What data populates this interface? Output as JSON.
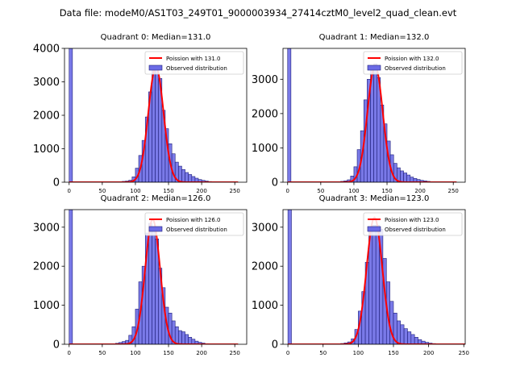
{
  "suptitle": "Data file: modeM0/AS1T03_249T01_9000003934_27414cztM0_level2_quad_clean.evt",
  "colors": {
    "bar_fill": "#6b6be6",
    "bar_edge": "#1f1f7a",
    "fit_line": "#ff0000"
  },
  "legend": {
    "observed_label": "Observed distribution",
    "placement": "top-right"
  },
  "chart_data": [
    {
      "type": "bar",
      "title": "Quadrant 0: Median=131.0",
      "fit_label": "Poission with 131.0",
      "median": 131.0,
      "xlim": [
        -7,
        268
      ],
      "ylim": [
        0,
        4000
      ],
      "xticks": [
        0,
        50,
        100,
        150,
        200,
        250
      ],
      "yticks": [
        0,
        1000,
        2000,
        3000,
        4000
      ],
      "bin_width": 5,
      "bins": [
        [
          0,
          4000
        ],
        [
          5,
          0
        ],
        [
          10,
          0
        ],
        [
          15,
          0
        ],
        [
          20,
          0
        ],
        [
          25,
          0
        ],
        [
          30,
          0
        ],
        [
          35,
          0
        ],
        [
          40,
          0
        ],
        [
          45,
          0
        ],
        [
          50,
          0
        ],
        [
          55,
          0
        ],
        [
          60,
          0
        ],
        [
          65,
          5
        ],
        [
          70,
          10
        ],
        [
          75,
          15
        ],
        [
          80,
          25
        ],
        [
          85,
          35
        ],
        [
          90,
          60
        ],
        [
          95,
          160
        ],
        [
          100,
          420
        ],
        [
          105,
          800
        ],
        [
          110,
          1250
        ],
        [
          115,
          1950
        ],
        [
          120,
          2700
        ],
        [
          125,
          3350
        ],
        [
          130,
          3450
        ],
        [
          135,
          3100
        ],
        [
          140,
          2150
        ],
        [
          145,
          1600
        ],
        [
          150,
          1150
        ],
        [
          155,
          850
        ],
        [
          160,
          600
        ],
        [
          165,
          480
        ],
        [
          170,
          380
        ],
        [
          175,
          290
        ],
        [
          180,
          230
        ],
        [
          185,
          170
        ],
        [
          190,
          120
        ],
        [
          195,
          80
        ],
        [
          200,
          55
        ],
        [
          205,
          35
        ],
        [
          210,
          20
        ],
        [
          215,
          12
        ],
        [
          220,
          8
        ],
        [
          225,
          5
        ],
        [
          230,
          3
        ]
      ],
      "fit_peak": 3450
    },
    {
      "type": "bar",
      "title": "Quadrant 1: Median=132.0",
      "fit_label": "Poission with 132.0",
      "median": 132.0,
      "xlim": [
        -7,
        268
      ],
      "ylim": [
        0,
        3900
      ],
      "xticks": [
        0,
        50,
        100,
        150,
        200,
        250
      ],
      "yticks": [
        0,
        1000,
        2000,
        3000
      ],
      "bin_width": 5,
      "bins": [
        [
          0,
          3900
        ],
        [
          5,
          0
        ],
        [
          10,
          0
        ],
        [
          15,
          0
        ],
        [
          20,
          0
        ],
        [
          25,
          0
        ],
        [
          30,
          0
        ],
        [
          35,
          0
        ],
        [
          40,
          0
        ],
        [
          45,
          0
        ],
        [
          50,
          0
        ],
        [
          55,
          0
        ],
        [
          60,
          0
        ],
        [
          65,
          5
        ],
        [
          70,
          10
        ],
        [
          75,
          15
        ],
        [
          80,
          25
        ],
        [
          85,
          40
        ],
        [
          90,
          70
        ],
        [
          95,
          180
        ],
        [
          100,
          450
        ],
        [
          105,
          950
        ],
        [
          110,
          1500
        ],
        [
          115,
          2400
        ],
        [
          120,
          3000
        ],
        [
          125,
          3250
        ],
        [
          130,
          3450
        ],
        [
          135,
          3050
        ],
        [
          140,
          2250
        ],
        [
          145,
          1700
        ],
        [
          150,
          1200
        ],
        [
          155,
          800
        ],
        [
          160,
          550
        ],
        [
          165,
          420
        ],
        [
          170,
          330
        ],
        [
          175,
          270
        ],
        [
          180,
          210
        ],
        [
          185,
          150
        ],
        [
          190,
          110
        ],
        [
          195,
          80
        ],
        [
          200,
          55
        ],
        [
          205,
          40
        ],
        [
          210,
          25
        ],
        [
          215,
          15
        ],
        [
          220,
          8
        ],
        [
          225,
          5
        ],
        [
          230,
          3
        ]
      ],
      "fit_peak": 3400
    },
    {
      "type": "bar",
      "title": "Quadrant 2: Median=126.0",
      "fit_label": "Poission with 126.0",
      "median": 126.0,
      "xlim": [
        -7,
        268
      ],
      "ylim": [
        0,
        3450
      ],
      "xticks": [
        0,
        50,
        100,
        150,
        200,
        250
      ],
      "yticks": [
        0,
        1000,
        2000,
        3000
      ],
      "bin_width": 5,
      "bins": [
        [
          0,
          3450
        ],
        [
          5,
          0
        ],
        [
          10,
          0
        ],
        [
          15,
          0
        ],
        [
          20,
          0
        ],
        [
          25,
          0
        ],
        [
          30,
          0
        ],
        [
          35,
          0
        ],
        [
          40,
          0
        ],
        [
          45,
          0
        ],
        [
          50,
          0
        ],
        [
          55,
          0
        ],
        [
          60,
          0
        ],
        [
          65,
          10
        ],
        [
          70,
          25
        ],
        [
          75,
          45
        ],
        [
          80,
          70
        ],
        [
          85,
          100
        ],
        [
          90,
          230
        ],
        [
          95,
          450
        ],
        [
          100,
          900
        ],
        [
          105,
          1600
        ],
        [
          110,
          2000
        ],
        [
          115,
          2850
        ],
        [
          120,
          3100
        ],
        [
          125,
          3000
        ],
        [
          130,
          2700
        ],
        [
          135,
          1950
        ],
        [
          140,
          1450
        ],
        [
          145,
          950
        ],
        [
          150,
          800
        ],
        [
          155,
          600
        ],
        [
          160,
          450
        ],
        [
          165,
          350
        ],
        [
          170,
          320
        ],
        [
          175,
          250
        ],
        [
          180,
          180
        ],
        [
          185,
          130
        ],
        [
          190,
          80
        ],
        [
          195,
          50
        ],
        [
          200,
          30
        ],
        [
          205,
          15
        ],
        [
          210,
          10
        ],
        [
          215,
          5
        ]
      ],
      "fit_peak": 3200
    },
    {
      "type": "bar",
      "title": "Quadrant 3: Median=123.0",
      "fit_label": "Poission with 123.0",
      "median": 123.0,
      "xlim": [
        -7,
        252
      ],
      "ylim": [
        0,
        3450
      ],
      "xticks": [
        0,
        50,
        100,
        150,
        200,
        250
      ],
      "yticks": [
        0,
        1000,
        2000,
        3000
      ],
      "bin_width": 5,
      "bins": [
        [
          0,
          3450
        ],
        [
          5,
          0
        ],
        [
          10,
          0
        ],
        [
          15,
          0
        ],
        [
          20,
          0
        ],
        [
          25,
          0
        ],
        [
          30,
          0
        ],
        [
          35,
          0
        ],
        [
          40,
          0
        ],
        [
          45,
          0
        ],
        [
          50,
          0
        ],
        [
          55,
          0
        ],
        [
          60,
          0
        ],
        [
          65,
          5
        ],
        [
          70,
          10
        ],
        [
          75,
          20
        ],
        [
          80,
          35
        ],
        [
          85,
          60
        ],
        [
          90,
          140
        ],
        [
          95,
          380
        ],
        [
          100,
          850
        ],
        [
          105,
          1350
        ],
        [
          110,
          2100
        ],
        [
          115,
          2950
        ],
        [
          120,
          3050
        ],
        [
          125,
          3050
        ],
        [
          130,
          2950
        ],
        [
          135,
          2200
        ],
        [
          140,
          1600
        ],
        [
          145,
          1100
        ],
        [
          150,
          800
        ],
        [
          155,
          600
        ],
        [
          160,
          500
        ],
        [
          165,
          400
        ],
        [
          170,
          320
        ],
        [
          175,
          250
        ],
        [
          180,
          180
        ],
        [
          185,
          120
        ],
        [
          190,
          80
        ],
        [
          195,
          50
        ],
        [
          200,
          30
        ],
        [
          205,
          18
        ],
        [
          210,
          10
        ],
        [
          215,
          5
        ]
      ],
      "fit_peak": 3250
    }
  ]
}
